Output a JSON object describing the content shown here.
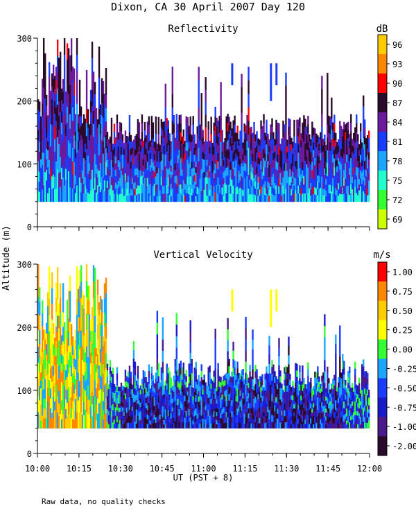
{
  "title": "Dixon, CA 30 April 2007  Day 120",
  "footnote": "Raw data, no quality checks",
  "chart_data": [
    {
      "type": "heatmap",
      "title": "Reflectivity",
      "ylabel": "Altitude (m)",
      "xlabel": "UT  (PST + 8)",
      "xlim": [
        "10:00",
        "12:00"
      ],
      "ylim": [
        0,
        300
      ],
      "x_ticks": [
        "10:00",
        "10:15",
        "10:30",
        "10:45",
        "11:00",
        "11:15",
        "11:30",
        "11:45",
        "12:00"
      ],
      "y_ticks": [
        0,
        100,
        200,
        300
      ],
      "colorbar": {
        "unit": "dB",
        "labels": [
          "96",
          "93",
          "90",
          "87",
          "84",
          "81",
          "78",
          "75",
          "72",
          "69"
        ],
        "colors": [
          "#ffcc00",
          "#ff8800",
          "#ff0000",
          "#2a0a2a",
          "#6a1a9a",
          "#1a3cff",
          "#1aa6ff",
          "#22ffcc",
          "#33ff33",
          "#ccff00"
        ]
      },
      "data_floor_m": 40,
      "typical_top_m": 150,
      "sparse_echo_times": [
        "11:10",
        "11:24",
        "11:26"
      ]
    },
    {
      "type": "heatmap",
      "title": "Vertical Velocity",
      "ylabel": "Altitude (m)",
      "xlabel": "UT  (PST + 8)",
      "xlim": [
        "10:00",
        "12:00"
      ],
      "ylim": [
        0,
        300
      ],
      "x_ticks": [
        "10:00",
        "10:15",
        "10:30",
        "10:45",
        "11:00",
        "11:15",
        "11:30",
        "11:45",
        "12:00"
      ],
      "y_ticks": [
        0,
        100,
        200,
        300
      ],
      "colorbar": {
        "unit": "m/s",
        "labels": [
          "1.00",
          "0.75",
          "0.50",
          "0.25",
          "0.00",
          "-0.25",
          "-0.50",
          "-0.75",
          "-1.00",
          "-2.00"
        ],
        "colors": [
          "#ff0000",
          "#ff8800",
          "#ffcc00",
          "#ffff00",
          "#33ff33",
          "#1aa6ff",
          "#1a3cff",
          "#1a1acc",
          "#4a1a8a",
          "#2a0a2a"
        ]
      },
      "data_floor_m": 40,
      "typical_top_m": 120,
      "sparse_echo_times": [
        "11:10",
        "11:24",
        "11:26"
      ]
    }
  ]
}
